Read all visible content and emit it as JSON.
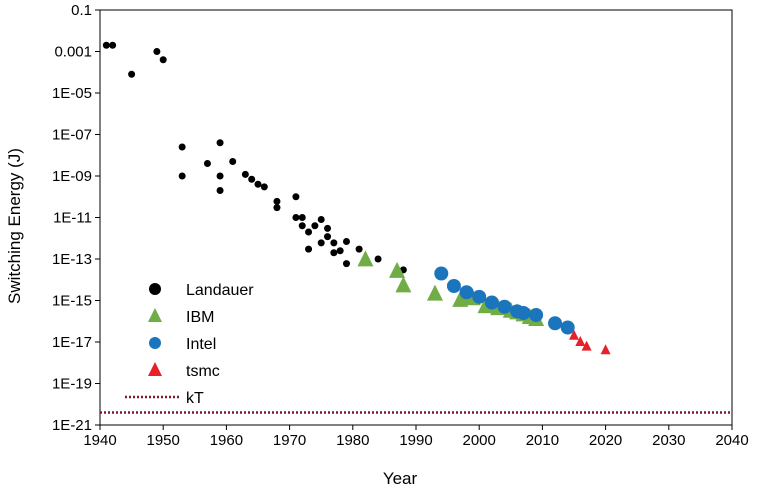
{
  "chart_data": {
    "type": "scatter",
    "xlabel": "Year",
    "ylabel": "Switching Energy (J)",
    "xlim": [
      1940,
      2040
    ],
    "ylim": [
      1e-21,
      0.1
    ],
    "log_y": true,
    "grid": false,
    "legend_position": "bottom-left",
    "x_ticks": [
      {
        "value": 1940,
        "label": "1940"
      },
      {
        "value": 1950,
        "label": "1950"
      },
      {
        "value": 1960,
        "label": "1960"
      },
      {
        "value": 1970,
        "label": "1970"
      },
      {
        "value": 1980,
        "label": "1980"
      },
      {
        "value": 1990,
        "label": "1990"
      },
      {
        "value": 2000,
        "label": "2000"
      },
      {
        "value": 2010,
        "label": "2010"
      },
      {
        "value": 2020,
        "label": "2020"
      },
      {
        "value": 2030,
        "label": "2030"
      },
      {
        "value": 2040,
        "label": "2040"
      }
    ],
    "y_ticks": [
      {
        "value": 0.1,
        "label": "0.1"
      },
      {
        "value": 0.001,
        "label": "0.001"
      },
      {
        "value": 1e-05,
        "label": "1E-05"
      },
      {
        "value": 1e-07,
        "label": "1E-07"
      },
      {
        "value": 1e-09,
        "label": "1E-09"
      },
      {
        "value": 1e-11,
        "label": "1E-11"
      },
      {
        "value": 1e-13,
        "label": "1E-13"
      },
      {
        "value": 1e-15,
        "label": "1E-15"
      },
      {
        "value": 1e-17,
        "label": "1E-17"
      },
      {
        "value": 1e-19,
        "label": "1E-19"
      },
      {
        "value": 1e-21,
        "label": "1E-21"
      }
    ],
    "series": [
      {
        "name": "Landauer",
        "marker": "circle",
        "color": "#000000",
        "size": "small",
        "points": [
          [
            1941,
            0.002
          ],
          [
            1942,
            0.002
          ],
          [
            1945,
            8e-05
          ],
          [
            1949,
            0.001
          ],
          [
            1950,
            0.0004
          ],
          [
            1953,
            2.5e-08
          ],
          [
            1953,
            1e-09
          ],
          [
            1957,
            4e-09
          ],
          [
            1959,
            4e-08
          ],
          [
            1959,
            1e-09
          ],
          [
            1959,
            2e-10
          ],
          [
            1961,
            5e-09
          ],
          [
            1963,
            1.2e-09
          ],
          [
            1964,
            7e-10
          ],
          [
            1965,
            4e-10
          ],
          [
            1966,
            3e-10
          ],
          [
            1968,
            6e-11
          ],
          [
            1968,
            3e-11
          ],
          [
            1971,
            1e-10
          ],
          [
            1971,
            1e-11
          ],
          [
            1972,
            1e-11
          ],
          [
            1972,
            4e-12
          ],
          [
            1973,
            2e-12
          ],
          [
            1973,
            3e-13
          ],
          [
            1974,
            4e-12
          ],
          [
            1975,
            8e-12
          ],
          [
            1975,
            6e-13
          ],
          [
            1976,
            3e-12
          ],
          [
            1976,
            1.2e-12
          ],
          [
            1977,
            2e-13
          ],
          [
            1977,
            6e-13
          ],
          [
            1978,
            2.5e-13
          ],
          [
            1979,
            6e-14
          ],
          [
            1979,
            7e-13
          ],
          [
            1981,
            3e-13
          ],
          [
            1984,
            1e-13
          ],
          [
            1988,
            3e-14
          ]
        ]
      },
      {
        "name": "IBM",
        "marker": "triangle-up",
        "color": "#70AD47",
        "size": "large",
        "points": [
          [
            1982,
            9e-14
          ],
          [
            1987,
            2.5e-14
          ],
          [
            1988,
            5e-15
          ],
          [
            1993,
            2e-15
          ],
          [
            1997,
            1e-15
          ],
          [
            1998,
            1.5e-15
          ],
          [
            1999,
            1.2e-15
          ],
          [
            2001,
            5e-16
          ],
          [
            2002,
            5e-16
          ],
          [
            2003,
            4e-16
          ],
          [
            2005,
            3e-16
          ],
          [
            2006,
            2.5e-16
          ],
          [
            2007,
            2e-16
          ],
          [
            2008,
            1.5e-16
          ],
          [
            2009,
            1.2e-16
          ]
        ]
      },
      {
        "name": "Intel",
        "marker": "circle",
        "color": "#1B75BC",
        "size": "large",
        "points": [
          [
            1994,
            2e-14
          ],
          [
            1996,
            5e-15
          ],
          [
            1998,
            2.5e-15
          ],
          [
            2000,
            1.5e-15
          ],
          [
            2002,
            8e-16
          ],
          [
            2004,
            5e-16
          ],
          [
            2006,
            3e-16
          ],
          [
            2007,
            2.5e-16
          ],
          [
            2009,
            2e-16
          ],
          [
            2012,
            8e-17
          ],
          [
            2014,
            5e-17
          ]
        ]
      },
      {
        "name": "tsmc",
        "marker": "triangle-up",
        "color": "#E8202A",
        "size": "small",
        "points": [
          [
            2015,
            2e-17
          ],
          [
            2016,
            1e-17
          ],
          [
            2017,
            6e-18
          ],
          [
            2020,
            4e-18
          ]
        ]
      }
    ],
    "reference_line": {
      "name": "kT",
      "style": "dotted",
      "color": "#7B1A2E",
      "value": 4e-21
    },
    "legend": [
      {
        "label": "Landauer",
        "marker": "circle",
        "color": "#000000"
      },
      {
        "label": "IBM",
        "marker": "triangle-up",
        "color": "#70AD47"
      },
      {
        "label": "Intel",
        "marker": "circle",
        "color": "#1B75BC"
      },
      {
        "label": "tsmc",
        "marker": "triangle-up",
        "color": "#E8202A"
      },
      {
        "label": "kT",
        "marker": "dotted-line",
        "color": "#7B1A2E"
      }
    ]
  }
}
